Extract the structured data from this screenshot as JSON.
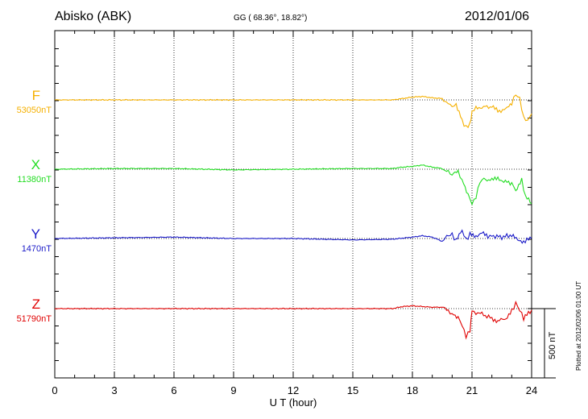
{
  "header": {
    "station": "Abisko (ABK)",
    "coords": "GG ( 68.36°,  18.82°)",
    "date": "2012/01/06"
  },
  "footer": {
    "plotted": "Plotted at 2012/02/06 01:00 UT",
    "scale_label": "500 nT"
  },
  "chart_data": {
    "type": "line",
    "xlabel": "U T (hour)",
    "x_ticks": [
      "0",
      "3",
      "6",
      "9",
      "12",
      "15",
      "18",
      "21",
      "24"
    ],
    "xlim": [
      0,
      24
    ],
    "scale_nT": 500,
    "series": [
      {
        "name": "F",
        "baseline": "53050nT",
        "color": "#f5b000",
        "points": [
          [
            0,
            0
          ],
          [
            3,
            0
          ],
          [
            6,
            0
          ],
          [
            9,
            0
          ],
          [
            12,
            0
          ],
          [
            15,
            0
          ],
          [
            17,
            0
          ],
          [
            17.5,
            10
          ],
          [
            18,
            20
          ],
          [
            18.5,
            25
          ],
          [
            19,
            15
          ],
          [
            19.5,
            10
          ],
          [
            19.8,
            -20
          ],
          [
            20.0,
            -50
          ],
          [
            20.2,
            -30
          ],
          [
            20.5,
            -150
          ],
          [
            20.7,
            -200
          ],
          [
            20.9,
            -170
          ],
          [
            21.0,
            -80
          ],
          [
            21.2,
            -60
          ],
          [
            21.5,
            -50
          ],
          [
            22,
            -50
          ],
          [
            22.3,
            -80
          ],
          [
            22.7,
            -70
          ],
          [
            23,
            -20
          ],
          [
            23.2,
            40
          ],
          [
            23.4,
            10
          ],
          [
            23.6,
            -130
          ],
          [
            23.8,
            -150
          ],
          [
            24,
            -100
          ]
        ]
      },
      {
        "name": "X",
        "baseline": "11380nT",
        "color": "#22dd22",
        "points": [
          [
            0,
            0
          ],
          [
            3,
            5
          ],
          [
            6,
            5
          ],
          [
            9,
            -5
          ],
          [
            12,
            0
          ],
          [
            15,
            5
          ],
          [
            17,
            5
          ],
          [
            17.5,
            15
          ],
          [
            18,
            20
          ],
          [
            18.5,
            30
          ],
          [
            19,
            15
          ],
          [
            19.5,
            5
          ],
          [
            19.8,
            -20
          ],
          [
            20.0,
            -40
          ],
          [
            20.3,
            -20
          ],
          [
            20.5,
            -80
          ],
          [
            20.8,
            -180
          ],
          [
            21.0,
            -250
          ],
          [
            21.2,
            -200
          ],
          [
            21.4,
            -90
          ],
          [
            21.6,
            -70
          ],
          [
            22,
            -80
          ],
          [
            22.3,
            -60
          ],
          [
            22.6,
            -90
          ],
          [
            23,
            -100
          ],
          [
            23.2,
            -150
          ],
          [
            23.5,
            -80
          ],
          [
            23.7,
            -200
          ],
          [
            24,
            -250
          ]
        ]
      },
      {
        "name": "Y",
        "baseline": "1470nT",
        "color": "#1a1ac8",
        "points": [
          [
            0,
            0
          ],
          [
            3,
            5
          ],
          [
            6,
            10
          ],
          [
            9,
            0
          ],
          [
            12,
            0
          ],
          [
            15,
            -10
          ],
          [
            17,
            -5
          ],
          [
            18,
            10
          ],
          [
            18.5,
            20
          ],
          [
            19,
            10
          ],
          [
            19.5,
            -20
          ],
          [
            19.8,
            20
          ],
          [
            20.0,
            30
          ],
          [
            20.2,
            -20
          ],
          [
            20.5,
            60
          ],
          [
            20.7,
            -10
          ],
          [
            20.9,
            30
          ],
          [
            21.2,
            20
          ],
          [
            21.5,
            40
          ],
          [
            21.8,
            10
          ],
          [
            22,
            20
          ],
          [
            22.5,
            10
          ],
          [
            23,
            25
          ],
          [
            23.3,
            -15
          ],
          [
            23.6,
            -20
          ],
          [
            24,
            0
          ]
        ]
      },
      {
        "name": "Z",
        "baseline": "51790nT",
        "color": "#e00000",
        "points": [
          [
            0,
            0
          ],
          [
            3,
            0
          ],
          [
            6,
            0
          ],
          [
            9,
            0
          ],
          [
            12,
            0
          ],
          [
            15,
            0
          ],
          [
            17,
            0
          ],
          [
            17.5,
            15
          ],
          [
            18,
            20
          ],
          [
            18.5,
            15
          ],
          [
            19,
            10
          ],
          [
            19.5,
            10
          ],
          [
            19.8,
            -20
          ],
          [
            20.0,
            -40
          ],
          [
            20.3,
            -60
          ],
          [
            20.5,
            -120
          ],
          [
            20.7,
            -200
          ],
          [
            20.9,
            -160
          ],
          [
            21.0,
            -20
          ],
          [
            21.2,
            -30
          ],
          [
            21.5,
            -40
          ],
          [
            22,
            -70
          ],
          [
            22.3,
            -90
          ],
          [
            22.7,
            -70
          ],
          [
            23,
            -20
          ],
          [
            23.2,
            40
          ],
          [
            23.4,
            -10
          ],
          [
            23.6,
            -70
          ],
          [
            24,
            -10
          ]
        ]
      }
    ]
  }
}
